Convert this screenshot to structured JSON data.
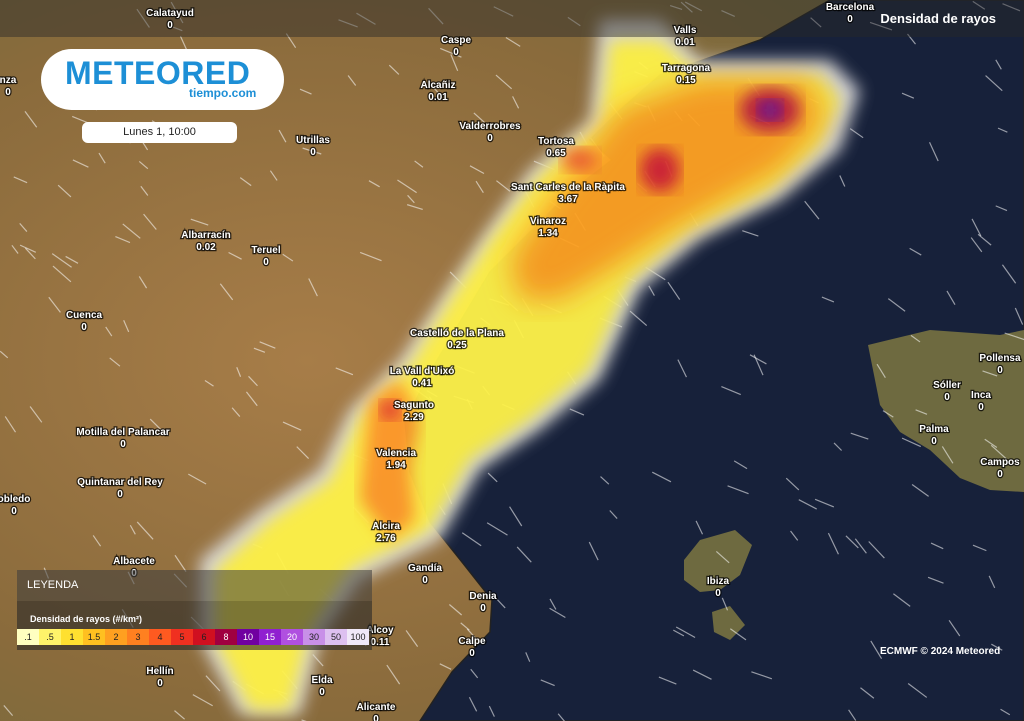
{
  "header": {
    "title": "Densidad de rayos"
  },
  "logo": {
    "brand": "METEORED",
    "site": "tiempo.com"
  },
  "date": "Lunes 1, 10:00",
  "legend": {
    "title": "LEYENDA",
    "subtitle": "Densidad de rayos (#/km²)",
    "steps": [
      ".1",
      ".5",
      "1",
      "1.5",
      "2",
      "3",
      "4",
      "5",
      "6",
      "8",
      "10",
      "15",
      "20",
      "30",
      "50",
      "100"
    ]
  },
  "credit": "ECMWF © 2024 Meteored",
  "cities": [
    {
      "name": "Calatayud",
      "value": "0"
    },
    {
      "name": "Caspe",
      "value": "0"
    },
    {
      "name": "Valls",
      "value": "0.01"
    },
    {
      "name": "Barcelona",
      "value": "0"
    },
    {
      "name": "Tarragona",
      "value": "0.15"
    },
    {
      "name": "Alcañiz",
      "value": "0.01"
    },
    {
      "name": "Valderrobres",
      "value": "0"
    },
    {
      "name": "Utrillas",
      "value": "0"
    },
    {
      "name": "Tortosa",
      "value": "0.65"
    },
    {
      "name": "Sant Carles de la Ràpita",
      "value": "3.67"
    },
    {
      "name": "Vinaroz",
      "value": "1.34"
    },
    {
      "name": "Albarracín",
      "value": "0.02"
    },
    {
      "name": "Teruel",
      "value": "0"
    },
    {
      "name": "Cuenca",
      "value": "0"
    },
    {
      "name": "Castelló de la Plana",
      "value": "0.25"
    },
    {
      "name": "La Vall d'Uixó",
      "value": "0.41"
    },
    {
      "name": "Sagunto",
      "value": "2.29"
    },
    {
      "name": "Motilla del Palancar",
      "value": "0"
    },
    {
      "name": "Valencia",
      "value": "1.94"
    },
    {
      "name": "Quintanar del Rey",
      "value": "0"
    },
    {
      "name": "obledo",
      "value": "0"
    },
    {
      "name": "Alcira",
      "value": "2.76"
    },
    {
      "name": "Albacete",
      "value": "0"
    },
    {
      "name": "Gandía",
      "value": "0"
    },
    {
      "name": "Denia",
      "value": "0"
    },
    {
      "name": "Alcoy",
      "value": "0.11"
    },
    {
      "name": "Calpe",
      "value": "0"
    },
    {
      "name": "Hellín",
      "value": "0"
    },
    {
      "name": "Elda",
      "value": "0"
    },
    {
      "name": "Alicante",
      "value": "0"
    },
    {
      "name": "Ibiza",
      "value": "0"
    },
    {
      "name": "Pollensa",
      "value": "0"
    },
    {
      "name": "Sóller",
      "value": "0"
    },
    {
      "name": "Inca",
      "value": "0"
    },
    {
      "name": "Palma",
      "value": "0"
    },
    {
      "name": "Campos",
      "value": "0"
    },
    {
      "name": "nza",
      "value": "0"
    }
  ]
}
